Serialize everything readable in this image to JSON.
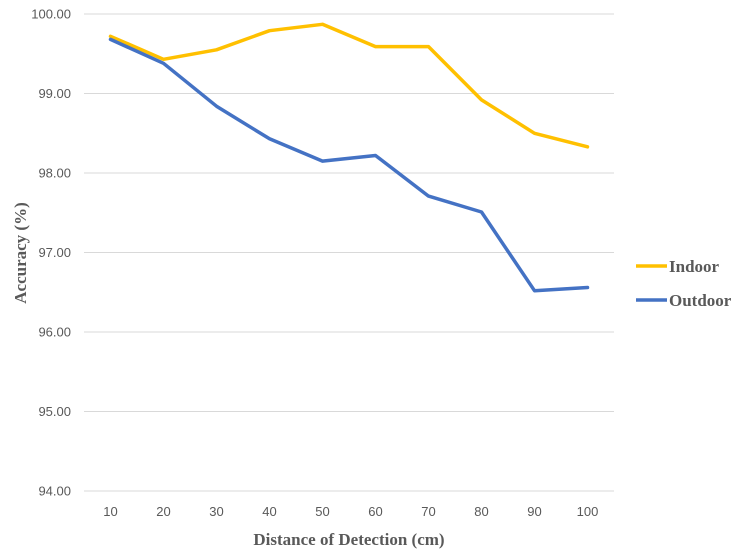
{
  "chart_data": {
    "type": "line",
    "title": "",
    "xlabel": "Distance of Detection (cm)",
    "ylabel": "Accuracy (%)",
    "categories": [
      "10",
      "20",
      "30",
      "40",
      "50",
      "60",
      "70",
      "80",
      "90",
      "100"
    ],
    "y_ticks": [
      "94.00",
      "95.00",
      "96.00",
      "97.00",
      "98.00",
      "99.00",
      "100.00"
    ],
    "ylim": [
      94,
      100
    ],
    "grid": true,
    "legend_position": "right",
    "series": [
      {
        "name": "Indoor",
        "color": "#FFC000",
        "values": [
          99.72,
          99.43,
          99.55,
          99.79,
          99.87,
          99.59,
          99.59,
          98.92,
          98.5,
          98.33
        ]
      },
      {
        "name": "Outdoor",
        "color": "#4472C4",
        "values": [
          99.68,
          99.38,
          98.84,
          98.43,
          98.15,
          98.22,
          97.71,
          97.51,
          96.52,
          96.56
        ]
      }
    ]
  }
}
